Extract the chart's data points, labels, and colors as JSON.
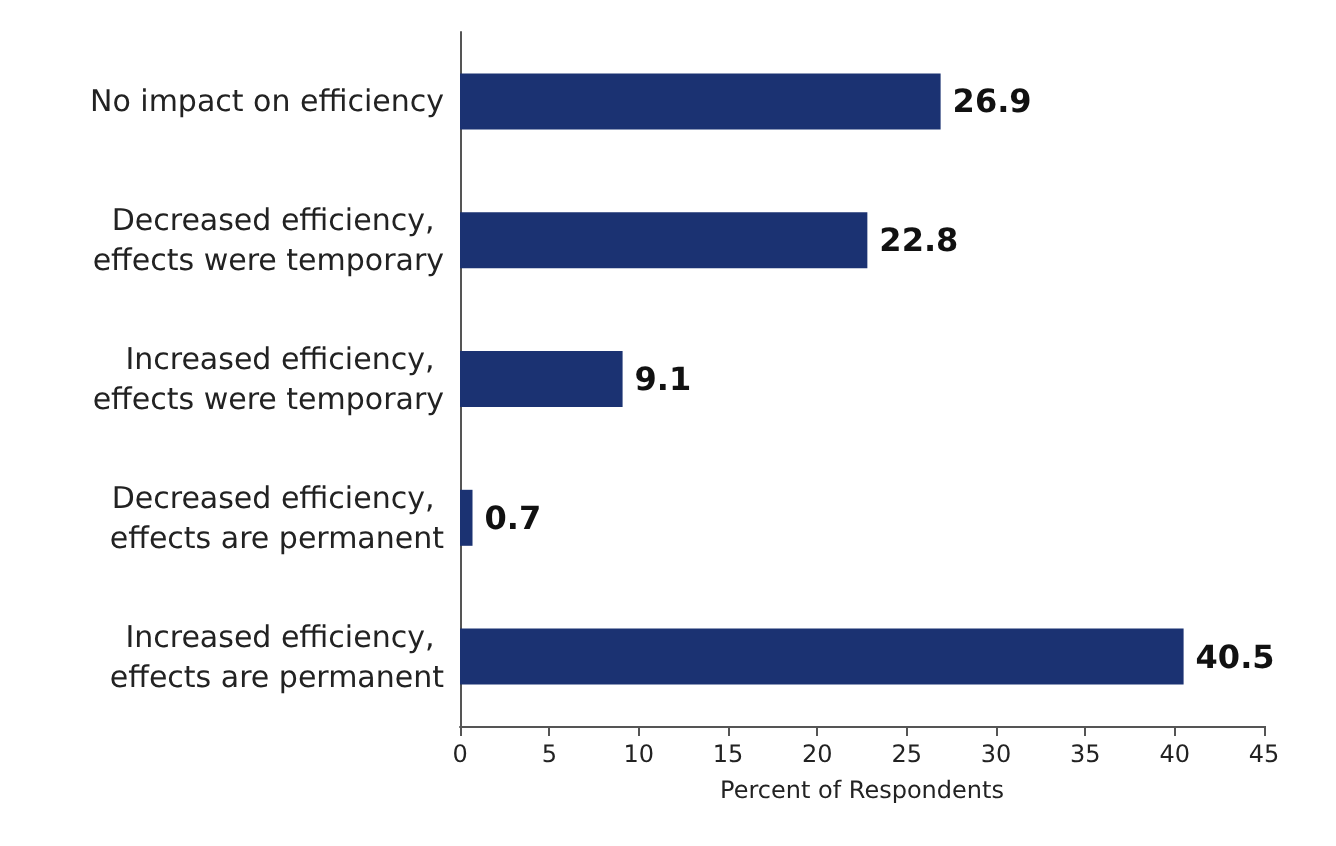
{
  "chart_data": {
    "type": "bar",
    "orientation": "horizontal",
    "xlabel": "Percent of Respondents",
    "categories": [
      "No impact on efficiency",
      "Decreased efficiency, effects were temporary",
      "Increased efficiency, effects were temporary",
      "Decreased efficiency, effects are permanent",
      "Increased efficiency, effects are permanent"
    ],
    "values": [
      26.9,
      22.8,
      9.1,
      0.7,
      40.5
    ],
    "color": "#1b3272",
    "xlim": [
      0,
      45
    ],
    "xticks": [
      0,
      5,
      10,
      15,
      20,
      25,
      30,
      35,
      40,
      45
    ],
    "data_labels": true,
    "grid": false
  }
}
